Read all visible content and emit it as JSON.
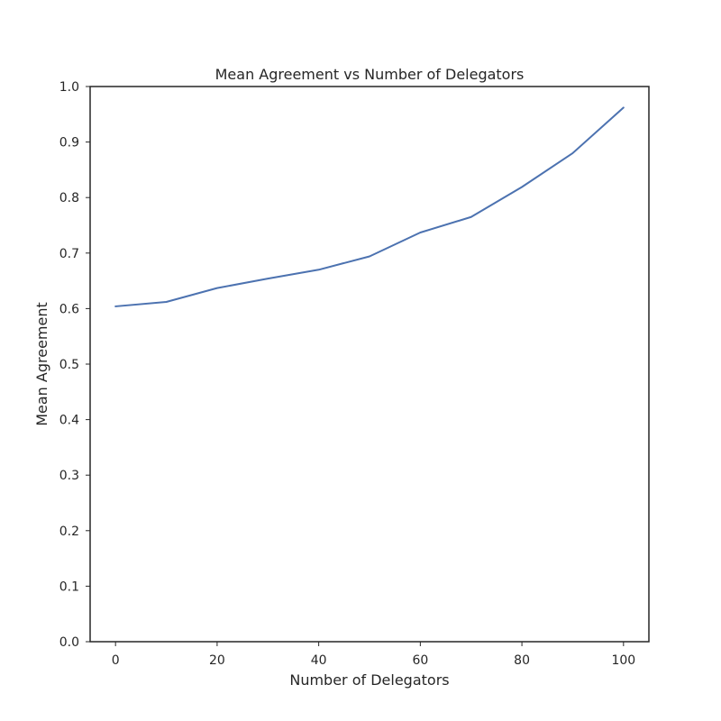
{
  "chart_data": {
    "type": "line",
    "title": "Mean Agreement vs Number of Delegators",
    "xlabel": "Number of Delegators",
    "ylabel": "Mean Agreement",
    "xlim": [
      -5,
      105
    ],
    "ylim": [
      0.0,
      1.0
    ],
    "xticks": [
      "0",
      "20",
      "40",
      "60",
      "80",
      "100"
    ],
    "yticks": [
      "0.0",
      "0.1",
      "0.2",
      "0.3",
      "0.4",
      "0.5",
      "0.6",
      "0.7",
      "0.8",
      "0.9",
      "1.0"
    ],
    "grid": false,
    "series": [
      {
        "color": "#4c72b0",
        "x": [
          0,
          10,
          20,
          30,
          40,
          50,
          60,
          70,
          80,
          90,
          100
        ],
        "y": [
          0.604,
          0.612,
          0.637,
          0.654,
          0.67,
          0.694,
          0.737,
          0.765,
          0.819,
          0.88,
          0.962
        ]
      }
    ]
  }
}
